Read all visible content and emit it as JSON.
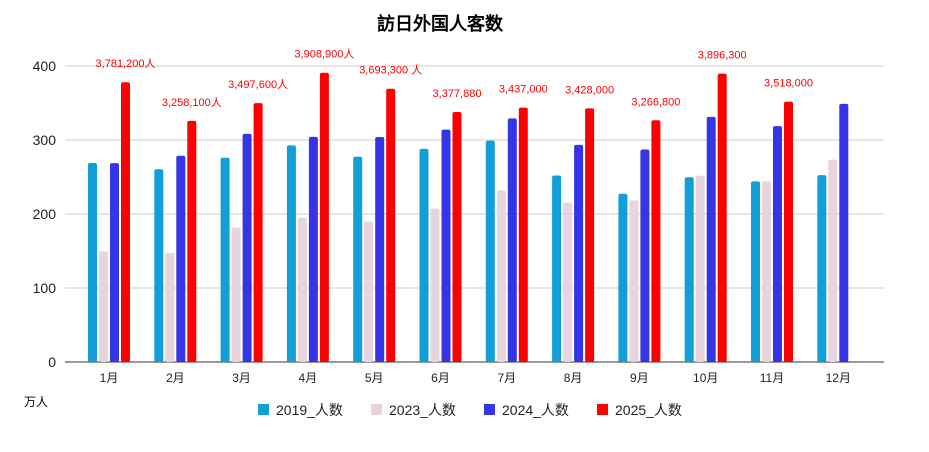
{
  "chart_data": {
    "type": "bar",
    "title": "訪日外国人客数",
    "ylabel": "万人",
    "ylim": [
      0,
      400
    ],
    "yticks": [
      0,
      100,
      200,
      300,
      400
    ],
    "grid": true,
    "legend_position": "bottom",
    "categories": [
      "1月",
      "2月",
      "3月",
      "4月",
      "5月",
      "6月",
      "7月",
      "8月",
      "9月",
      "10月",
      "11月",
      "12月"
    ],
    "series": [
      {
        "name": "2019_人数",
        "color": "#129fd7",
        "values": [
          268.9,
          260.4,
          276.0,
          292.7,
          277.3,
          288.0,
          299.1,
          252.0,
          227.3,
          249.7,
          244.1,
          252.6
        ]
      },
      {
        "name": "2023_人数",
        "color": "#e8d4de",
        "values": [
          149.7,
          147.5,
          181.8,
          194.9,
          189.9,
          207.3,
          232.0,
          215.6,
          218.4,
          251.7,
          244.1,
          273.4
        ]
      },
      {
        "name": "2024_人数",
        "color": "#3535e6",
        "values": [
          268.8,
          278.8,
          308.2,
          304.3,
          304.0,
          314.0,
          329.2,
          293.4,
          287.2,
          331.2,
          318.8,
          348.9
        ]
      },
      {
        "name": "2025_人数",
        "color": "#ff0000",
        "values": [
          378.12,
          325.81,
          349.76,
          390.89,
          369.33,
          337.79,
          343.7,
          342.8,
          326.68,
          389.63,
          351.8,
          null
        ],
        "data_labels": [
          "3,781,200人",
          "3,258,100人",
          "3,497,600人",
          "3,908,900人",
          "3,693,300 人",
          "3,377,880",
          "3,437,000",
          "3,428,000",
          "3,266,800",
          "3,896,300",
          "3,518,000",
          null
        ]
      }
    ]
  }
}
